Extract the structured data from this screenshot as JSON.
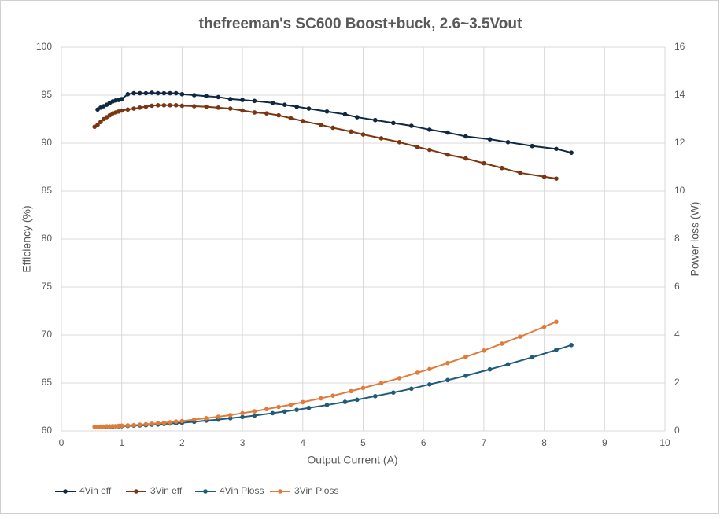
{
  "chart_data": {
    "type": "line",
    "title": "thefreeman's SC600 Boost+buck, 2.6~3.5Vout",
    "xlabel": "Output Current (A)",
    "ylabel": "Efficiency (%)",
    "y2label": "Power loss (W)",
    "xlim": [
      0,
      10
    ],
    "xticks": [
      0,
      1,
      2,
      3,
      4,
      5,
      6,
      7,
      8,
      9,
      10
    ],
    "ylim": [
      60,
      100
    ],
    "yticks": [
      60,
      65,
      70,
      75,
      80,
      85,
      90,
      95,
      100
    ],
    "y2lim": [
      0,
      16
    ],
    "y2ticks": [
      0,
      2,
      4,
      6,
      8,
      10,
      12,
      14,
      16
    ],
    "grid": true,
    "legend": "bottom-left",
    "series": [
      {
        "name": "4Vin eff",
        "color": "#0e2841",
        "axis": "y",
        "x": [
          0.6,
          0.65,
          0.7,
          0.75,
          0.8,
          0.85,
          0.9,
          0.95,
          1.0,
          1.1,
          1.2,
          1.3,
          1.4,
          1.5,
          1.6,
          1.7,
          1.8,
          1.9,
          2.0,
          2.2,
          2.4,
          2.6,
          2.8,
          3.0,
          3.2,
          3.5,
          3.7,
          3.9,
          4.1,
          4.4,
          4.7,
          4.9,
          5.2,
          5.5,
          5.8,
          6.1,
          6.4,
          6.7,
          7.1,
          7.4,
          7.8,
          8.2,
          8.45
        ],
        "values": [
          93.5,
          93.7,
          93.85,
          94.0,
          94.2,
          94.35,
          94.45,
          94.5,
          94.6,
          95.1,
          95.2,
          95.2,
          95.2,
          95.25,
          95.2,
          95.2,
          95.2,
          95.2,
          95.1,
          95.0,
          94.9,
          94.8,
          94.6,
          94.5,
          94.4,
          94.2,
          94.0,
          93.8,
          93.6,
          93.3,
          93.0,
          92.7,
          92.4,
          92.1,
          91.8,
          91.4,
          91.1,
          90.7,
          90.4,
          90.1,
          89.7,
          89.4,
          89.0
        ]
      },
      {
        "name": "3Vin eff",
        "color": "#7b3510",
        "axis": "y",
        "x": [
          0.55,
          0.6,
          0.65,
          0.7,
          0.75,
          0.8,
          0.85,
          0.9,
          0.95,
          1.0,
          1.1,
          1.2,
          1.3,
          1.4,
          1.5,
          1.6,
          1.7,
          1.8,
          1.9,
          2.0,
          2.2,
          2.4,
          2.6,
          2.8,
          3.0,
          3.2,
          3.4,
          3.6,
          3.8,
          4.0,
          4.3,
          4.5,
          4.8,
          5.0,
          5.3,
          5.6,
          5.9,
          6.1,
          6.4,
          6.7,
          7.0,
          7.3,
          7.6,
          8.0,
          8.2
        ],
        "values": [
          91.7,
          91.9,
          92.2,
          92.5,
          92.7,
          92.9,
          93.1,
          93.2,
          93.3,
          93.4,
          93.5,
          93.6,
          93.7,
          93.8,
          93.9,
          93.95,
          93.95,
          93.95,
          93.95,
          93.9,
          93.85,
          93.8,
          93.7,
          93.6,
          93.4,
          93.2,
          93.1,
          92.9,
          92.6,
          92.3,
          91.9,
          91.6,
          91.2,
          90.9,
          90.5,
          90.1,
          89.6,
          89.3,
          88.8,
          88.4,
          87.9,
          87.4,
          86.9,
          86.5,
          86.3
        ]
      },
      {
        "name": "4Vin Ploss",
        "color": "#1f5c7a",
        "axis": "y2",
        "x": [
          0.6,
          0.65,
          0.7,
          0.75,
          0.8,
          0.85,
          0.9,
          0.95,
          1.0,
          1.1,
          1.2,
          1.3,
          1.4,
          1.5,
          1.6,
          1.7,
          1.8,
          1.9,
          2.0,
          2.2,
          2.4,
          2.6,
          2.8,
          3.0,
          3.2,
          3.5,
          3.7,
          3.9,
          4.1,
          4.4,
          4.7,
          4.9,
          5.2,
          5.5,
          5.8,
          6.1,
          6.4,
          6.7,
          7.1,
          7.4,
          7.8,
          8.2,
          8.45
        ],
        "values": [
          0.17,
          0.17,
          0.17,
          0.18,
          0.18,
          0.18,
          0.19,
          0.19,
          0.2,
          0.21,
          0.22,
          0.23,
          0.24,
          0.26,
          0.27,
          0.29,
          0.31,
          0.32,
          0.34,
          0.38,
          0.43,
          0.47,
          0.53,
          0.58,
          0.64,
          0.74,
          0.81,
          0.88,
          0.96,
          1.08,
          1.21,
          1.3,
          1.45,
          1.6,
          1.76,
          1.94,
          2.12,
          2.3,
          2.57,
          2.78,
          3.07,
          3.38,
          3.58
        ]
      },
      {
        "name": "3Vin Ploss",
        "color": "#e07b39",
        "axis": "y2",
        "x": [
          0.55,
          0.6,
          0.65,
          0.7,
          0.75,
          0.8,
          0.85,
          0.9,
          0.95,
          1.0,
          1.1,
          1.2,
          1.3,
          1.4,
          1.5,
          1.6,
          1.7,
          1.8,
          1.9,
          2.0,
          2.2,
          2.4,
          2.6,
          2.8,
          3.0,
          3.2,
          3.4,
          3.6,
          3.8,
          4.0,
          4.3,
          4.5,
          4.8,
          5.0,
          5.3,
          5.6,
          5.9,
          6.1,
          6.4,
          6.7,
          7.0,
          7.3,
          7.6,
          8.0,
          8.2
        ],
        "values": [
          0.17,
          0.17,
          0.18,
          0.18,
          0.19,
          0.19,
          0.2,
          0.2,
          0.21,
          0.22,
          0.23,
          0.24,
          0.26,
          0.28,
          0.3,
          0.32,
          0.34,
          0.36,
          0.39,
          0.41,
          0.47,
          0.53,
          0.59,
          0.66,
          0.74,
          0.82,
          0.91,
          1.0,
          1.09,
          1.2,
          1.36,
          1.47,
          1.66,
          1.79,
          1.99,
          2.2,
          2.43,
          2.58,
          2.83,
          3.09,
          3.35,
          3.64,
          3.93,
          4.34,
          4.55
        ]
      }
    ]
  }
}
